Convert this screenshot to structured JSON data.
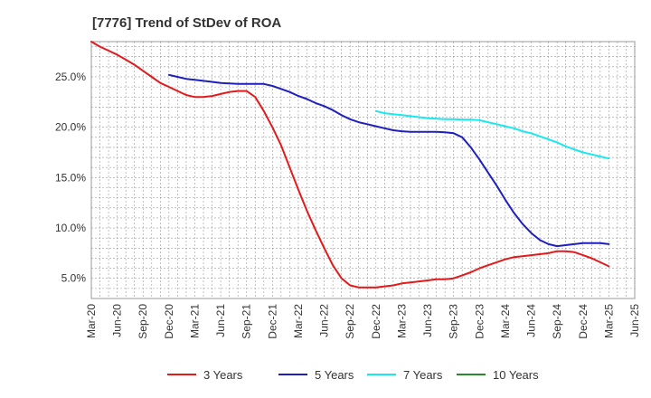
{
  "chart_data": {
    "type": "line",
    "title": "[7776]  Trend of StDev of ROA",
    "xlabel": "",
    "ylabel": "",
    "x_ticks": [
      "Mar-20",
      "Jun-20",
      "Sep-20",
      "Dec-20",
      "Mar-21",
      "Jun-21",
      "Sep-21",
      "Dec-21",
      "Mar-22",
      "Jun-22",
      "Sep-22",
      "Dec-22",
      "Mar-23",
      "Jun-23",
      "Sep-23",
      "Dec-23",
      "Mar-24",
      "Jun-24",
      "Sep-24",
      "Dec-24",
      "Mar-25",
      "Jun-25"
    ],
    "y_ticks": [
      "5.0%",
      "10.0%",
      "15.0%",
      "20.0%",
      "25.0%"
    ],
    "y_tick_values": [
      5,
      10,
      15,
      20,
      25
    ],
    "ylim": [
      3,
      28.5
    ],
    "grid": true,
    "legend_position": "bottom",
    "series": [
      {
        "name": "3 Years",
        "color": "#e31a1c",
        "x": [
          "Mar-20",
          "Apr-20",
          "May-20",
          "Jun-20",
          "Jul-20",
          "Aug-20",
          "Sep-20",
          "Oct-20",
          "Nov-20",
          "Dec-20",
          "Jan-21",
          "Feb-21",
          "Mar-21",
          "Apr-21",
          "May-21",
          "Jun-21",
          "Jul-21",
          "Aug-21",
          "Sep-21",
          "Oct-21",
          "Nov-21",
          "Dec-21",
          "Jan-22",
          "Feb-22",
          "Mar-22",
          "Apr-22",
          "May-22",
          "Jun-22",
          "Jul-22",
          "Aug-22",
          "Sep-22",
          "Oct-22",
          "Nov-22",
          "Dec-22",
          "Jan-23",
          "Feb-23",
          "Mar-23",
          "Apr-23",
          "May-23",
          "Jun-23",
          "Jul-23",
          "Aug-23",
          "Sep-23",
          "Oct-23",
          "Nov-23",
          "Dec-23",
          "Jan-24",
          "Feb-24",
          "Mar-24",
          "Apr-24",
          "May-24",
          "Jun-24",
          "Jul-24",
          "Aug-24",
          "Sep-24",
          "Oct-24",
          "Nov-24",
          "Dec-24",
          "Jan-25",
          "Feb-25",
          "Mar-25"
        ],
        "values": [
          28.5,
          28.0,
          27.6,
          27.2,
          26.7,
          26.2,
          25.6,
          25.0,
          24.4,
          24.0,
          23.6,
          23.2,
          23.0,
          23.0,
          23.1,
          23.3,
          23.5,
          23.6,
          23.6,
          23.0,
          21.6,
          20.0,
          18.2,
          16.0,
          13.8,
          11.7,
          9.8,
          8.0,
          6.3,
          5.0,
          4.3,
          4.1,
          4.1,
          4.1,
          4.2,
          4.3,
          4.5,
          4.6,
          4.7,
          4.8,
          4.9,
          4.9,
          5.0,
          5.3,
          5.6,
          6.0,
          6.3,
          6.6,
          6.9,
          7.1,
          7.2,
          7.3,
          7.4,
          7.5,
          7.7,
          7.7,
          7.6,
          7.3,
          7.0,
          6.6,
          6.2
        ]
      },
      {
        "name": "5 Years",
        "color": "#1f1fbf",
        "x": [
          "Dec-20",
          "Jan-21",
          "Feb-21",
          "Mar-21",
          "Apr-21",
          "May-21",
          "Jun-21",
          "Jul-21",
          "Aug-21",
          "Sep-21",
          "Oct-21",
          "Nov-21",
          "Dec-21",
          "Jan-22",
          "Feb-22",
          "Mar-22",
          "Apr-22",
          "May-22",
          "Jun-22",
          "Jul-22",
          "Aug-22",
          "Sep-22",
          "Oct-22",
          "Nov-22",
          "Dec-22",
          "Jan-23",
          "Feb-23",
          "Mar-23",
          "Apr-23",
          "May-23",
          "Jun-23",
          "Jul-23",
          "Aug-23",
          "Sep-23",
          "Oct-23",
          "Nov-23",
          "Dec-23",
          "Jan-24",
          "Feb-24",
          "Mar-24",
          "Apr-24",
          "May-24",
          "Jun-24",
          "Jul-24",
          "Aug-24",
          "Sep-24",
          "Oct-24",
          "Nov-24",
          "Dec-24",
          "Jan-25",
          "Feb-25",
          "Mar-25"
        ],
        "values": [
          25.2,
          25.0,
          24.8,
          24.7,
          24.6,
          24.5,
          24.4,
          24.35,
          24.3,
          24.3,
          24.3,
          24.3,
          24.1,
          23.8,
          23.5,
          23.1,
          22.8,
          22.4,
          22.1,
          21.7,
          21.2,
          20.8,
          20.5,
          20.3,
          20.1,
          19.9,
          19.7,
          19.6,
          19.55,
          19.55,
          19.55,
          19.55,
          19.5,
          19.4,
          19.0,
          18.0,
          16.8,
          15.5,
          14.2,
          12.8,
          11.5,
          10.4,
          9.5,
          8.8,
          8.4,
          8.2,
          8.3,
          8.4,
          8.5,
          8.5,
          8.5,
          8.4
        ]
      },
      {
        "name": "7 Years",
        "color": "#19e8f0",
        "x": [
          "Dec-22",
          "Jan-23",
          "Feb-23",
          "Mar-23",
          "Apr-23",
          "May-23",
          "Jun-23",
          "Jul-23",
          "Aug-23",
          "Sep-23",
          "Oct-23",
          "Nov-23",
          "Dec-23",
          "Jan-24",
          "Feb-24",
          "Mar-24",
          "Apr-24",
          "May-24",
          "Jun-24",
          "Jul-24",
          "Aug-24",
          "Sep-24",
          "Oct-24",
          "Nov-24",
          "Dec-24",
          "Jan-25",
          "Feb-25",
          "Mar-25"
        ],
        "values": [
          21.6,
          21.4,
          21.3,
          21.2,
          21.1,
          21.0,
          20.9,
          20.85,
          20.8,
          20.8,
          20.75,
          20.75,
          20.7,
          20.5,
          20.3,
          20.1,
          19.9,
          19.6,
          19.4,
          19.1,
          18.8,
          18.5,
          18.1,
          17.8,
          17.5,
          17.3,
          17.1,
          16.9
        ]
      },
      {
        "name": "10 Years",
        "color": "#2a8a2a",
        "x": [],
        "values": []
      }
    ]
  }
}
